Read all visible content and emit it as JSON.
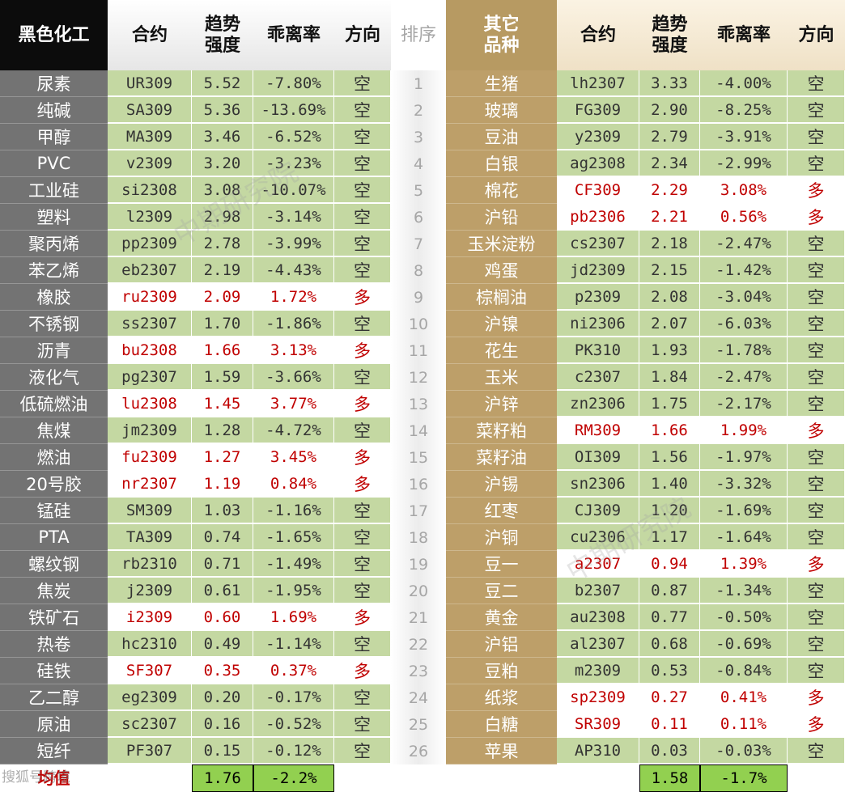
{
  "colors": {
    "left_name_bg": "#737373",
    "right_name_bg": "#bd9f69",
    "short_bg": "#c4d8a2",
    "long_bg": "#ffffff",
    "long_text": "#c00000",
    "short_text": "#333333",
    "avg_bg": "#92d050",
    "rank_bg": "#eeeeee"
  },
  "headers": {
    "left_sector": "黑色化工",
    "contract": "合约",
    "strength_1": "趋势",
    "strength_2": "强度",
    "deviation": "乖离率",
    "direction": "方向",
    "rank": "排序",
    "right_sector_1": "其它",
    "right_sector_2": "品种"
  },
  "left_rows": [
    {
      "name": "尿素",
      "contract": "UR309",
      "strength": "5.52",
      "deviation": "-7.80%",
      "direction": "空",
      "trend": "short"
    },
    {
      "name": "纯碱",
      "contract": "SA309",
      "strength": "5.36",
      "deviation": "-13.69%",
      "direction": "空",
      "trend": "short"
    },
    {
      "name": "甲醇",
      "contract": "MA309",
      "strength": "3.46",
      "deviation": "-6.52%",
      "direction": "空",
      "trend": "short"
    },
    {
      "name": "PVC",
      "contract": "v2309",
      "strength": "3.20",
      "deviation": "-3.23%",
      "direction": "空",
      "trend": "short"
    },
    {
      "name": "工业硅",
      "contract": "si2308",
      "strength": "3.08",
      "deviation": "-10.07%",
      "direction": "空",
      "trend": "short"
    },
    {
      "name": "塑料",
      "contract": "l2309",
      "strength": "2.98",
      "deviation": "-3.14%",
      "direction": "空",
      "trend": "short"
    },
    {
      "name": "聚丙烯",
      "contract": "pp2309",
      "strength": "2.78",
      "deviation": "-3.99%",
      "direction": "空",
      "trend": "short"
    },
    {
      "name": "苯乙烯",
      "contract": "eb2307",
      "strength": "2.19",
      "deviation": "-4.43%",
      "direction": "空",
      "trend": "short"
    },
    {
      "name": "橡胶",
      "contract": "ru2309",
      "strength": "2.09",
      "deviation": "1.72%",
      "direction": "多",
      "trend": "long"
    },
    {
      "name": "不锈钢",
      "contract": "ss2307",
      "strength": "1.70",
      "deviation": "-1.86%",
      "direction": "空",
      "trend": "short"
    },
    {
      "name": "沥青",
      "contract": "bu2308",
      "strength": "1.66",
      "deviation": "3.13%",
      "direction": "多",
      "trend": "long"
    },
    {
      "name": "液化气",
      "contract": "pg2307",
      "strength": "1.59",
      "deviation": "-3.66%",
      "direction": "空",
      "trend": "short"
    },
    {
      "name": "低硫燃油",
      "contract": "lu2308",
      "strength": "1.45",
      "deviation": "3.77%",
      "direction": "多",
      "trend": "long"
    },
    {
      "name": "焦煤",
      "contract": "jm2309",
      "strength": "1.28",
      "deviation": "-4.72%",
      "direction": "空",
      "trend": "short"
    },
    {
      "name": "燃油",
      "contract": "fu2309",
      "strength": "1.27",
      "deviation": "3.45%",
      "direction": "多",
      "trend": "long"
    },
    {
      "name": "20号胶",
      "contract": "nr2307",
      "strength": "1.19",
      "deviation": "0.84%",
      "direction": "多",
      "trend": "long"
    },
    {
      "name": "锰硅",
      "contract": "SM309",
      "strength": "1.03",
      "deviation": "-1.16%",
      "direction": "空",
      "trend": "short"
    },
    {
      "name": "PTA",
      "contract": "TA309",
      "strength": "0.74",
      "deviation": "-1.65%",
      "direction": "空",
      "trend": "short"
    },
    {
      "name": "螺纹钢",
      "contract": "rb2310",
      "strength": "0.71",
      "deviation": "-1.49%",
      "direction": "空",
      "trend": "short"
    },
    {
      "name": "焦炭",
      "contract": "j2309",
      "strength": "0.61",
      "deviation": "-1.95%",
      "direction": "空",
      "trend": "short"
    },
    {
      "name": "铁矿石",
      "contract": "i2309",
      "strength": "0.60",
      "deviation": "1.69%",
      "direction": "多",
      "trend": "long"
    },
    {
      "name": "热卷",
      "contract": "hc2310",
      "strength": "0.49",
      "deviation": "-1.14%",
      "direction": "空",
      "trend": "short"
    },
    {
      "name": "硅铁",
      "contract": "SF307",
      "strength": "0.35",
      "deviation": "0.37%",
      "direction": "多",
      "trend": "long"
    },
    {
      "name": "乙二醇",
      "contract": "eg2309",
      "strength": "0.20",
      "deviation": "-0.17%",
      "direction": "空",
      "trend": "short"
    },
    {
      "name": "原油",
      "contract": "sc2307",
      "strength": "0.16",
      "deviation": "-0.52%",
      "direction": "空",
      "trend": "short"
    },
    {
      "name": "短纤",
      "contract": "PF307",
      "strength": "0.15",
      "deviation": "-0.12%",
      "direction": "空",
      "trend": "short"
    }
  ],
  "ranks": [
    "1",
    "2",
    "3",
    "4",
    "5",
    "6",
    "7",
    "8",
    "9",
    "10",
    "11",
    "12",
    "13",
    "14",
    "15",
    "16",
    "17",
    "18",
    "19",
    "20",
    "21",
    "22",
    "23",
    "24",
    "25",
    "26"
  ],
  "right_rows": [
    {
      "name": "生猪",
      "contract": "lh2307",
      "strength": "3.33",
      "deviation": "-4.00%",
      "direction": "空",
      "trend": "short"
    },
    {
      "name": "玻璃",
      "contract": "FG309",
      "strength": "2.90",
      "deviation": "-8.25%",
      "direction": "空",
      "trend": "short"
    },
    {
      "name": "豆油",
      "contract": "y2309",
      "strength": "2.79",
      "deviation": "-3.91%",
      "direction": "空",
      "trend": "short"
    },
    {
      "name": "白银",
      "contract": "ag2308",
      "strength": "2.34",
      "deviation": "-2.99%",
      "direction": "空",
      "trend": "short"
    },
    {
      "name": "棉花",
      "contract": "CF309",
      "strength": "2.29",
      "deviation": "3.08%",
      "direction": "多",
      "trend": "long"
    },
    {
      "name": "沪铅",
      "contract": "pb2306",
      "strength": "2.21",
      "deviation": "0.56%",
      "direction": "多",
      "trend": "long"
    },
    {
      "name": "玉米淀粉",
      "contract": "cs2307",
      "strength": "2.18",
      "deviation": "-2.47%",
      "direction": "空",
      "trend": "short"
    },
    {
      "name": "鸡蛋",
      "contract": "jd2309",
      "strength": "2.15",
      "deviation": "-1.42%",
      "direction": "空",
      "trend": "short"
    },
    {
      "name": "棕榈油",
      "contract": "p2309",
      "strength": "2.08",
      "deviation": "-3.04%",
      "direction": "空",
      "trend": "short"
    },
    {
      "name": "沪镍",
      "contract": "ni2306",
      "strength": "2.07",
      "deviation": "-6.03%",
      "direction": "空",
      "trend": "short"
    },
    {
      "name": "花生",
      "contract": "PK310",
      "strength": "1.93",
      "deviation": "-1.78%",
      "direction": "空",
      "trend": "short"
    },
    {
      "name": "玉米",
      "contract": "c2307",
      "strength": "1.84",
      "deviation": "-2.47%",
      "direction": "空",
      "trend": "short"
    },
    {
      "name": "沪锌",
      "contract": "zn2306",
      "strength": "1.75",
      "deviation": "-2.17%",
      "direction": "空",
      "trend": "short"
    },
    {
      "name": "菜籽粕",
      "contract": "RM309",
      "strength": "1.66",
      "deviation": "1.99%",
      "direction": "多",
      "trend": "long"
    },
    {
      "name": "菜籽油",
      "contract": "OI309",
      "strength": "1.56",
      "deviation": "-1.97%",
      "direction": "空",
      "trend": "short"
    },
    {
      "name": "沪锡",
      "contract": "sn2306",
      "strength": "1.40",
      "deviation": "-3.32%",
      "direction": "空",
      "trend": "short"
    },
    {
      "name": "红枣",
      "contract": "CJ309",
      "strength": "1.20",
      "deviation": "-1.69%",
      "direction": "空",
      "trend": "short"
    },
    {
      "name": "沪铜",
      "contract": "cu2306",
      "strength": "1.17",
      "deviation": "-1.64%",
      "direction": "空",
      "trend": "short"
    },
    {
      "name": "豆一",
      "contract": "a2307",
      "strength": "0.94",
      "deviation": "1.39%",
      "direction": "多",
      "trend": "long"
    },
    {
      "name": "豆二",
      "contract": "b2307",
      "strength": "0.87",
      "deviation": "-1.34%",
      "direction": "空",
      "trend": "short"
    },
    {
      "name": "黄金",
      "contract": "au2308",
      "strength": "0.77",
      "deviation": "-0.50%",
      "direction": "空",
      "trend": "short"
    },
    {
      "name": "沪铝",
      "contract": "al2307",
      "strength": "0.68",
      "deviation": "-0.69%",
      "direction": "空",
      "trend": "short"
    },
    {
      "name": "豆粕",
      "contract": "m2309",
      "strength": "0.53",
      "deviation": "-0.84%",
      "direction": "空",
      "trend": "short"
    },
    {
      "name": "纸浆",
      "contract": "sp2309",
      "strength": "0.27",
      "deviation": "0.41%",
      "direction": "多",
      "trend": "long"
    },
    {
      "name": "白糖",
      "contract": "SR309",
      "strength": "0.11",
      "deviation": "0.11%",
      "direction": "多",
      "trend": "long"
    },
    {
      "name": "苹果",
      "contract": "AP310",
      "strength": "0.03",
      "deviation": "-0.03%",
      "direction": "空",
      "trend": "short"
    }
  ],
  "footer": {
    "label": "均值",
    "left_avg_strength": "1.76",
    "left_avg_deviation": "-2.2%",
    "right_avg_strength": "1.58",
    "right_avg_deviation": "-1.7%"
  },
  "watermarks": [
    "中期研究院",
    "中期研究院"
  ],
  "logo_text": "搜狐号跨境"
}
